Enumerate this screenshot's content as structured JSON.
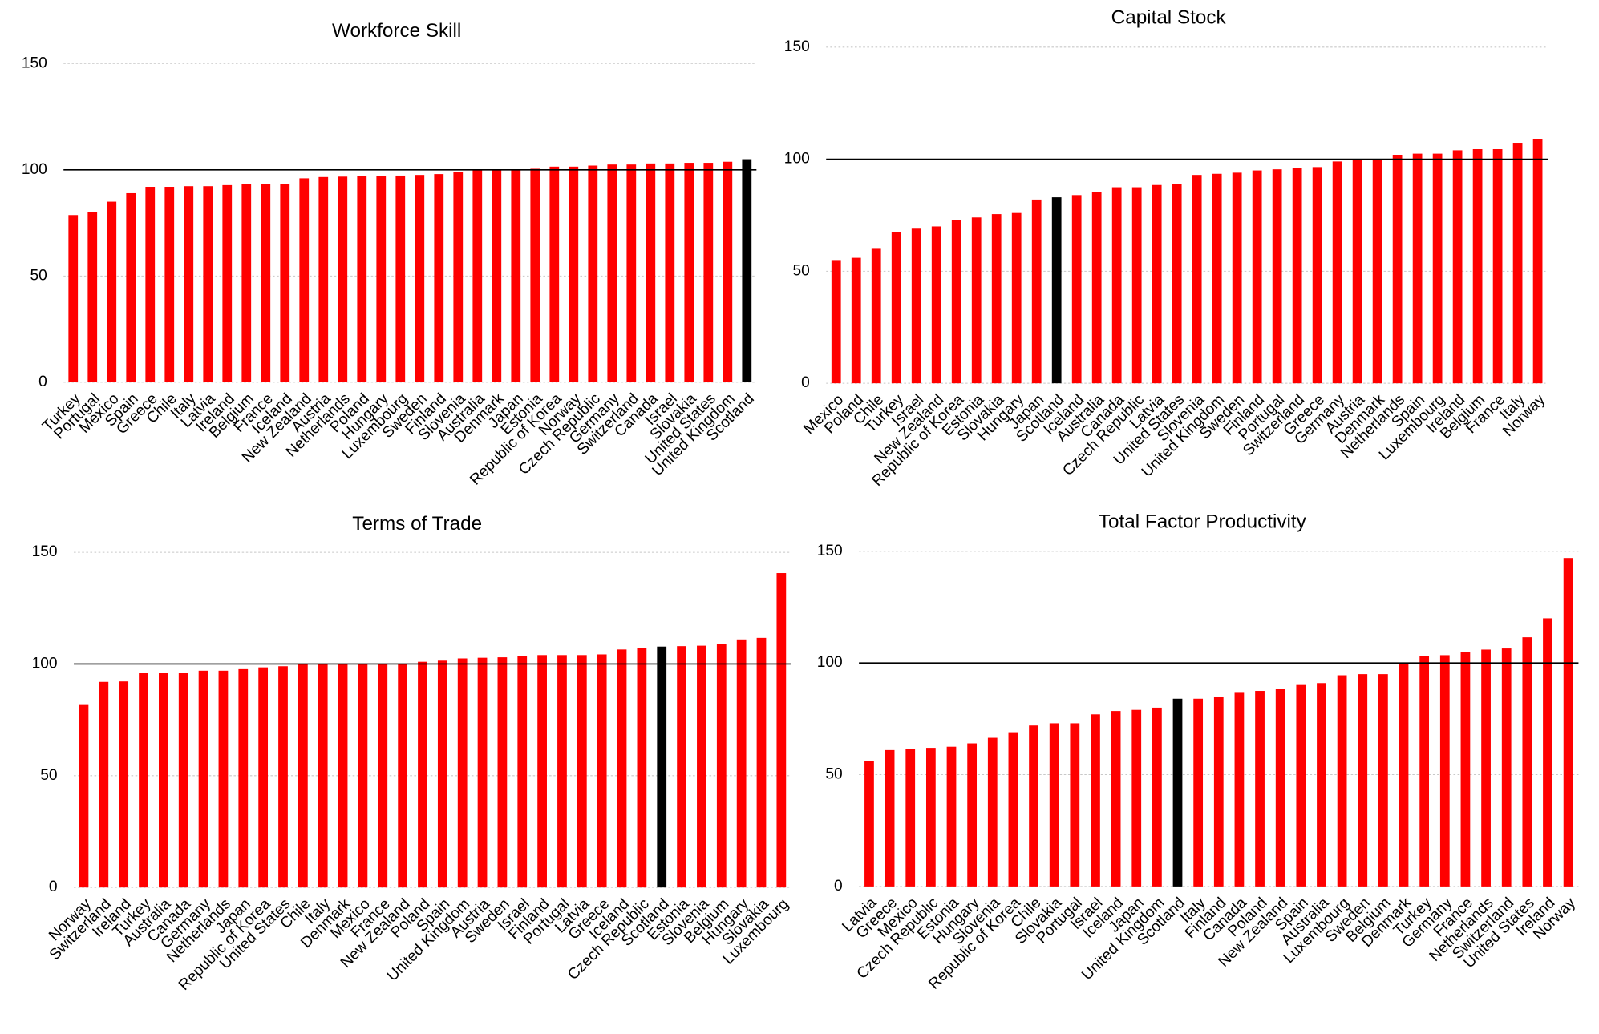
{
  "chart_data": [
    {
      "type": "bar",
      "title": "Workforce Skill",
      "categories": [
        "Turkey",
        "Portugal",
        "Mexico",
        "Spain",
        "Greece",
        "Chile",
        "Italy",
        "Latvia",
        "Ireland",
        "Belgium",
        "France",
        "Iceland",
        "New Zealand",
        "Austria",
        "Netherlands",
        "Poland",
        "Hungary",
        "Luxembourg",
        "Sweden",
        "Finland",
        "Slovenia",
        "Australia",
        "Denmark",
        "Japan",
        "Estonia",
        "Republic of Korea",
        "Norway",
        "Czech Republic",
        "Germany",
        "Switzerland",
        "Canada",
        "Israel",
        "Slovakia",
        "United States",
        "United Kingdom",
        "Scotland"
      ],
      "values": [
        78.7,
        80,
        85,
        89,
        92,
        92,
        92.3,
        92.3,
        92.8,
        93.2,
        93.5,
        93.5,
        96,
        96.6,
        96.8,
        97,
        97,
        97.3,
        97.6,
        98,
        99,
        100,
        100,
        100,
        100.5,
        101.5,
        101.5,
        102,
        102.5,
        102.5,
        103,
        103,
        103.3,
        103.3,
        103.8,
        105
      ],
      "color": "#ff0000",
      "highlight": "Scotland",
      "highlight_color": "#000000",
      "reference_line": 100,
      "ylim": [
        0,
        150
      ],
      "yticks": [
        0,
        50,
        100,
        150
      ],
      "grid": true
    },
    {
      "type": "bar",
      "title": "Capital Stock",
      "categories": [
        "Mexico",
        "Poland",
        "Chile",
        "Turkey",
        "Israel",
        "New Zealand",
        "Republic of Korea",
        "Estonia",
        "Slovakia",
        "Hungary",
        "Japan",
        "Scotland",
        "Iceland",
        "Australia",
        "Canada",
        "Czech Republic",
        "Latvia",
        "United States",
        "Slovenia",
        "United Kingdom",
        "Sweden",
        "Finland",
        "Portugal",
        "Switzerland",
        "Greece",
        "Germany",
        "Austria",
        "Denmark",
        "Netherlands",
        "Spain",
        "Luxembourg",
        "Ireland",
        "Belgium",
        "France",
        "Italy",
        "Norway"
      ],
      "values": [
        55,
        56,
        60,
        67.6,
        69,
        70,
        73,
        74,
        75.5,
        76,
        82,
        83,
        84,
        85.5,
        87.5,
        87.5,
        88.5,
        89,
        93,
        93.5,
        94,
        95,
        95.5,
        96,
        96.5,
        99,
        99.5,
        100,
        102,
        102.5,
        102.5,
        104,
        104.5,
        104.5,
        107,
        109
      ],
      "color": "#ff0000",
      "highlight": "Scotland",
      "highlight_color": "#000000",
      "reference_line": 100,
      "ylim": [
        0,
        150
      ],
      "yticks": [
        0,
        50,
        100,
        150
      ],
      "grid": true
    },
    {
      "type": "bar",
      "title": "Terms of Trade",
      "categories": [
        "Norway",
        "Switzerland",
        "Ireland",
        "Turkey",
        "Australia",
        "Canada",
        "Germany",
        "Netherlands",
        "Japan",
        "Republic of Korea",
        "United States",
        "Chile",
        "Italy",
        "Denmark",
        "Mexico",
        "France",
        "New Zealand",
        "Poland",
        "Spain",
        "United Kingdom",
        "Austria",
        "Sweden",
        "Israel",
        "Finland",
        "Portugal",
        "Latvia",
        "Greece",
        "Iceland",
        "Czech Republic",
        "Scotland",
        "Estonia",
        "Slovenia",
        "Belgium",
        "Hungary",
        "Slovakia",
        "Luxembourg"
      ],
      "values": [
        82,
        92,
        92.2,
        96,
        96,
        96,
        97,
        97,
        97.7,
        98.5,
        99,
        100,
        100,
        100,
        100,
        100,
        100,
        101,
        101.5,
        102.5,
        102.8,
        103,
        103.5,
        104,
        104,
        104,
        104.3,
        106.5,
        107.3,
        107.8,
        108,
        108.2,
        109,
        111,
        111.7,
        140.7
      ],
      "color": "#ff0000",
      "highlight": "Scotland",
      "highlight_color": "#000000",
      "reference_line": 100,
      "ylim": [
        0,
        150
      ],
      "yticks": [
        0,
        50,
        100,
        150
      ],
      "grid": true
    },
    {
      "type": "bar",
      "title": "Total Factor Productivity",
      "categories": [
        "Latvia",
        "Greece",
        "Mexico",
        "Czech Republic",
        "Estonia",
        "Hungary",
        "Slovenia",
        "Republic of Korea",
        "Chile",
        "Slovakia",
        "Portugal",
        "Israel",
        "Iceland",
        "Japan",
        "United Kingdom",
        "Scotland",
        "Italy",
        "Finland",
        "Canada",
        "Poland",
        "New Zealand",
        "Spain",
        "Australia",
        "Luxembourg",
        "Sweden",
        "Belgium",
        "Denmark",
        "Turkey",
        "Germany",
        "France",
        "Netherlands",
        "Switzerland",
        "United States",
        "Ireland",
        "Norway"
      ],
      "values": [
        56,
        61,
        61.5,
        62,
        62.5,
        64,
        66.5,
        69,
        72,
        73,
        73,
        77,
        78.5,
        79,
        80,
        84,
        84,
        85,
        87,
        87.5,
        88.5,
        90.5,
        91,
        94.5,
        95,
        95,
        100,
        103,
        103.5,
        105,
        106,
        106.5,
        111.5,
        120,
        147
      ],
      "color": "#ff0000",
      "highlight": "Scotland",
      "highlight_color": "#000000",
      "reference_line": 100,
      "ylim": [
        0,
        150
      ],
      "yticks": [
        0,
        50,
        100,
        150
      ],
      "grid": true
    }
  ]
}
